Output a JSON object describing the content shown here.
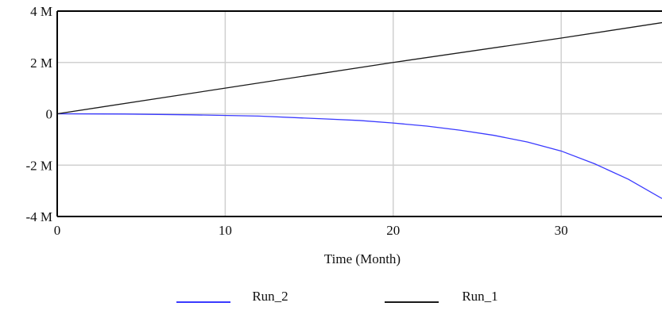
{
  "chart_data": {
    "type": "line",
    "title": "",
    "xlabel": "Time (Month)",
    "ylabel": "",
    "xlim": [
      0,
      36
    ],
    "ylim": [
      -4000000,
      4000000
    ],
    "x_ticks": [
      0,
      10,
      20,
      30
    ],
    "x_tick_labels": [
      "0",
      "10",
      "20",
      "30"
    ],
    "y_ticks": [
      4000000,
      2000000,
      0,
      -2000000,
      -4000000
    ],
    "y_tick_labels": [
      "4 M",
      "2 M",
      "0",
      "-2 M",
      "-4 M"
    ],
    "grid": true,
    "legend_placement": "bottom",
    "colors": {
      "grid": "#d0d0d0",
      "axis": "#000000"
    },
    "series": [
      {
        "name": "Run_2",
        "color": "#3a3aff",
        "x": [
          0,
          4,
          8,
          12,
          16,
          18,
          20,
          22,
          24,
          26,
          28,
          30,
          32,
          34,
          36
        ],
        "y": [
          0,
          -10000,
          -40000,
          -90000,
          -200000,
          -260000,
          -360000,
          -480000,
          -640000,
          -840000,
          -1100000,
          -1450000,
          -1950000,
          -2550000,
          -3300000
        ]
      },
      {
        "name": "Run_1",
        "color": "#1a1a1a",
        "x": [
          0,
          10,
          20,
          30,
          36
        ],
        "y": [
          0,
          1000000,
          2000000,
          2950000,
          3550000
        ]
      }
    ]
  }
}
